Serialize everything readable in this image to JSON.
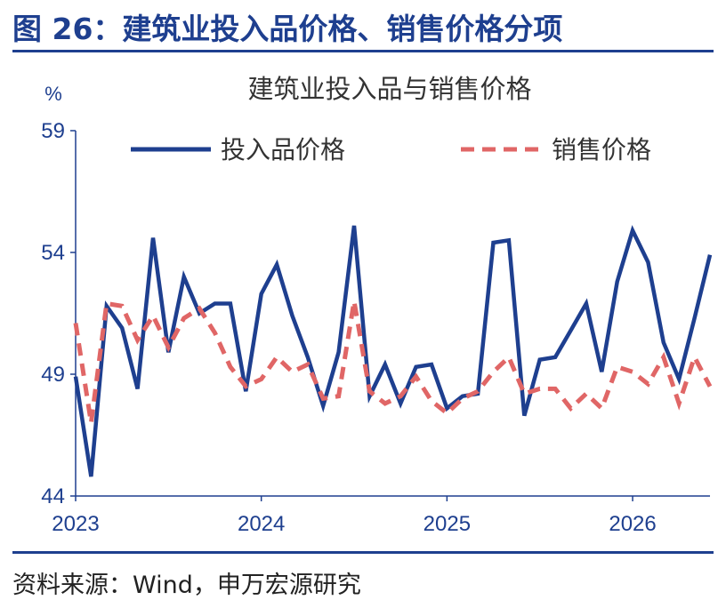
{
  "figure": {
    "title": "图 26：建筑业投入品价格、销售价格分项",
    "source": "资料来源：Wind，申万宏源研究"
  },
  "chart_data": {
    "type": "line",
    "title": "建筑业投入品与销售价格",
    "ylabel": "%",
    "xlabel": "",
    "ylim": [
      44,
      59
    ],
    "yticks": [
      "44",
      "49",
      "54",
      "59"
    ],
    "xticks": [
      "2023",
      "2024",
      "2025",
      "2026"
    ],
    "grid": false,
    "legend_position": "top",
    "x": [
      "2023-01",
      "2023-02",
      "2023-03",
      "2023-04",
      "2023-05",
      "2023-06",
      "2023-07",
      "2023-08",
      "2023-09",
      "2023-10",
      "2023-11",
      "2023-12",
      "2024-01",
      "2024-02",
      "2024-03",
      "2024-04",
      "2024-05",
      "2024-06",
      "2024-07",
      "2024-08",
      "2024-09",
      "2024-10",
      "2024-11",
      "2024-12",
      "2025-01",
      "2025-02",
      "2025-03",
      "2025-04",
      "2025-05",
      "2025-06",
      "2025-07",
      "2025-08",
      "2025-09",
      "2025-10",
      "2025-11",
      "2025-12",
      "2026-01",
      "2026-02",
      "2026-03",
      "2026-04",
      "2026-05",
      "2026-06"
    ],
    "series": [
      {
        "name": "投入品价格",
        "color": "#1e3f8f",
        "style": "solid",
        "values": [
          48.9,
          44.8,
          51.8,
          50.9,
          48.4,
          54.6,
          49.9,
          53.0,
          51.5,
          51.9,
          51.9,
          48.3,
          52.3,
          53.5,
          51.4,
          49.7,
          47.7,
          49.9,
          55.1,
          48.1,
          49.4,
          47.8,
          49.3,
          49.4,
          47.6,
          48.1,
          48.2,
          54.4,
          54.5,
          47.3,
          49.6,
          49.7,
          50.8,
          51.9,
          49.1,
          52.8,
          54.9,
          53.6,
          50.3,
          48.8,
          51.3,
          53.9
        ]
      },
      {
        "name": "销售价格",
        "color": "#e06666",
        "style": "dashed",
        "values": [
          51.1,
          47.0,
          51.9,
          51.8,
          50.4,
          51.4,
          50.1,
          51.3,
          51.7,
          50.7,
          49.3,
          48.5,
          48.8,
          49.7,
          49.1,
          49.4,
          48.0,
          48.1,
          52.0,
          48.3,
          47.8,
          48.1,
          48.9,
          47.9,
          47.4,
          48.0,
          48.3,
          49.1,
          49.7,
          48.2,
          48.4,
          48.4,
          47.6,
          48.2,
          47.6,
          49.3,
          49.1,
          48.6,
          49.7,
          47.8,
          49.7,
          48.5
        ]
      }
    ]
  }
}
